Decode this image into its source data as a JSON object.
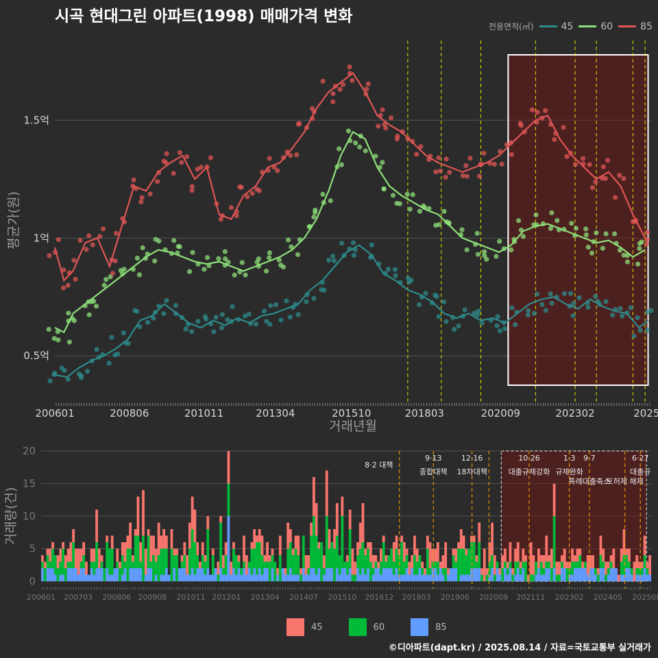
{
  "title": "시곡 현대그린 아파트(1998) 매매가격 변화",
  "legend_title": "전용면적(㎡)",
  "caption": "©디아파트(dapt.kr) / 2025.08.14 / 자료=국토교통부 실거래가",
  "colors": {
    "s45": "#2e8b8b",
    "s60": "#8ee07a",
    "s85": "#e05555",
    "b45": "#f8766d",
    "b60": "#00ba38",
    "b85": "#619cff"
  },
  "chart_data": [
    {
      "type": "line",
      "title": "시곡 현대그린 아파트(1998) 매매가격 변화",
      "xlabel": "거래년월",
      "ylabel": "평균가(원)",
      "x_ticks": [
        "200601",
        "200806",
        "201011",
        "201304",
        "201510",
        "201803",
        "202009",
        "202302",
        "2025"
      ],
      "y_ticks": [
        "0.5억",
        "1억",
        "1.5억"
      ],
      "y_tick_values": [
        0.5,
        1.0,
        1.5
      ],
      "ylim": [
        0.3,
        1.85
      ],
      "xlim": [
        2006.0,
        2025.6
      ],
      "highlight_range": [
        2020.9,
        2025.5
      ],
      "event_lines": [
        2017.6,
        2018.7,
        2020.0,
        2021.8,
        2023.1,
        2023.8,
        2025.0,
        2025.4
      ],
      "series": [
        {
          "name": "45",
          "points": [
            [
              2006.0,
              0.42
            ],
            [
              2006.4,
              0.41
            ],
            [
              2006.8,
              0.45
            ],
            [
              2007.2,
              0.48
            ],
            [
              2007.6,
              0.5
            ],
            [
              2008.0,
              0.53
            ],
            [
              2008.4,
              0.57
            ],
            [
              2008.8,
              0.65
            ],
            [
              2009.2,
              0.67
            ],
            [
              2009.6,
              0.72
            ],
            [
              2010.0,
              0.68
            ],
            [
              2010.4,
              0.64
            ],
            [
              2010.8,
              0.62
            ],
            [
              2011.2,
              0.65
            ],
            [
              2011.6,
              0.63
            ],
            [
              2012.0,
              0.66
            ],
            [
              2012.4,
              0.64
            ],
            [
              2012.8,
              0.67
            ],
            [
              2013.2,
              0.68
            ],
            [
              2013.6,
              0.7
            ],
            [
              2014.0,
              0.72
            ],
            [
              2014.4,
              0.78
            ],
            [
              2014.8,
              0.82
            ],
            [
              2015.2,
              0.88
            ],
            [
              2015.6,
              0.94
            ],
            [
              2016.0,
              0.97
            ],
            [
              2016.4,
              0.93
            ],
            [
              2016.8,
              0.85
            ],
            [
              2017.2,
              0.82
            ],
            [
              2017.6,
              0.78
            ],
            [
              2018.0,
              0.76
            ],
            [
              2018.4,
              0.73
            ],
            [
              2018.8,
              0.68
            ],
            [
              2019.2,
              0.66
            ],
            [
              2019.6,
              0.68
            ],
            [
              2020.0,
              0.65
            ],
            [
              2020.4,
              0.66
            ],
            [
              2020.8,
              0.64
            ],
            [
              2021.2,
              0.68
            ],
            [
              2021.6,
              0.72
            ],
            [
              2022.0,
              0.74
            ],
            [
              2022.4,
              0.75
            ],
            [
              2022.8,
              0.72
            ],
            [
              2023.2,
              0.7
            ],
            [
              2023.6,
              0.74
            ],
            [
              2024.0,
              0.71
            ],
            [
              2024.4,
              0.69
            ],
            [
              2024.8,
              0.68
            ],
            [
              2025.2,
              0.62
            ],
            [
              2025.5,
              0.65
            ]
          ]
        },
        {
          "name": "60",
          "points": [
            [
              2006.0,
              0.62
            ],
            [
              2006.3,
              0.6
            ],
            [
              2006.6,
              0.68
            ],
            [
              2007.0,
              0.72
            ],
            [
              2007.4,
              0.76
            ],
            [
              2007.8,
              0.8
            ],
            [
              2008.2,
              0.84
            ],
            [
              2008.6,
              0.88
            ],
            [
              2009.0,
              0.92
            ],
            [
              2009.4,
              0.95
            ],
            [
              2009.8,
              0.94
            ],
            [
              2010.2,
              0.92
            ],
            [
              2010.6,
              0.9
            ],
            [
              2011.0,
              0.89
            ],
            [
              2011.4,
              0.9
            ],
            [
              2011.8,
              0.88
            ],
            [
              2012.2,
              0.86
            ],
            [
              2012.6,
              0.88
            ],
            [
              2013.0,
              0.9
            ],
            [
              2013.4,
              0.92
            ],
            [
              2013.8,
              0.95
            ],
            [
              2014.2,
              1.0
            ],
            [
              2014.6,
              1.08
            ],
            [
              2015.0,
              1.2
            ],
            [
              2015.4,
              1.35
            ],
            [
              2015.8,
              1.45
            ],
            [
              2016.2,
              1.42
            ],
            [
              2016.6,
              1.3
            ],
            [
              2017.0,
              1.22
            ],
            [
              2017.4,
              1.18
            ],
            [
              2017.8,
              1.15
            ],
            [
              2018.2,
              1.12
            ],
            [
              2018.6,
              1.1
            ],
            [
              2019.0,
              1.05
            ],
            [
              2019.4,
              1.0
            ],
            [
              2019.8,
              0.98
            ],
            [
              2020.2,
              0.96
            ],
            [
              2020.6,
              0.94
            ],
            [
              2021.0,
              0.97
            ],
            [
              2021.4,
              1.03
            ],
            [
              2021.8,
              1.05
            ],
            [
              2022.2,
              1.06
            ],
            [
              2022.6,
              1.04
            ],
            [
              2023.0,
              1.02
            ],
            [
              2023.4,
              1.0
            ],
            [
              2023.8,
              0.98
            ],
            [
              2024.2,
              0.99
            ],
            [
              2024.6,
              0.96
            ],
            [
              2025.0,
              0.92
            ],
            [
              2025.4,
              0.95
            ]
          ]
        },
        {
          "name": "85",
          "points": [
            [
              2006.0,
              0.96
            ],
            [
              2006.3,
              0.82
            ],
            [
              2006.6,
              0.86
            ],
            [
              2007.0,
              0.98
            ],
            [
              2007.4,
              1.0
            ],
            [
              2007.8,
              0.88
            ],
            [
              2008.2,
              1.05
            ],
            [
              2008.6,
              1.22
            ],
            [
              2009.0,
              1.2
            ],
            [
              2009.4,
              1.28
            ],
            [
              2009.8,
              1.32
            ],
            [
              2010.2,
              1.35
            ],
            [
              2010.6,
              1.25
            ],
            [
              2011.0,
              1.3
            ],
            [
              2011.4,
              1.1
            ],
            [
              2011.8,
              1.08
            ],
            [
              2012.2,
              1.18
            ],
            [
              2012.6,
              1.22
            ],
            [
              2013.0,
              1.3
            ],
            [
              2013.4,
              1.32
            ],
            [
              2013.8,
              1.38
            ],
            [
              2014.2,
              1.45
            ],
            [
              2014.6,
              1.55
            ],
            [
              2015.0,
              1.62
            ],
            [
              2015.4,
              1.66
            ],
            [
              2015.8,
              1.7
            ],
            [
              2016.2,
              1.62
            ],
            [
              2016.6,
              1.52
            ],
            [
              2017.0,
              1.48
            ],
            [
              2017.4,
              1.45
            ],
            [
              2017.8,
              1.4
            ],
            [
              2018.2,
              1.35
            ],
            [
              2018.6,
              1.32
            ],
            [
              2019.0,
              1.3
            ],
            [
              2019.4,
              1.28
            ],
            [
              2019.8,
              1.3
            ],
            [
              2020.2,
              1.32
            ],
            [
              2020.6,
              1.35
            ],
            [
              2021.0,
              1.4
            ],
            [
              2021.4,
              1.45
            ],
            [
              2021.8,
              1.5
            ],
            [
              2022.2,
              1.52
            ],
            [
              2022.6,
              1.42
            ],
            [
              2023.0,
              1.35
            ],
            [
              2023.4,
              1.3
            ],
            [
              2023.8,
              1.25
            ],
            [
              2024.2,
              1.28
            ],
            [
              2024.6,
              1.22
            ],
            [
              2025.0,
              1.1
            ],
            [
              2025.4,
              1.0
            ]
          ]
        }
      ]
    },
    {
      "type": "bar",
      "stacked": true,
      "ylabel": "거래량(건)",
      "y_ticks": [
        "0",
        "5",
        "10",
        "15",
        "20"
      ],
      "y_tick_values": [
        0,
        5,
        10,
        15,
        20
      ],
      "ylim": [
        0,
        20
      ],
      "x_ticks": [
        "200601",
        "200703",
        "200806",
        "200908",
        "201011",
        "201201",
        "201304",
        "201407",
        "201510",
        "201612",
        "201803",
        "201906",
        "202009",
        "202111",
        "202302",
        "202405",
        "202508"
      ],
      "series_names": [
        "45",
        "60",
        "85"
      ],
      "highlight_range": [
        2020.9,
        2025.6
      ],
      "events": [
        {
          "x": 2017.6,
          "label1": "8·2 대책",
          "label2": ""
        },
        {
          "x": 2018.7,
          "label1": "9·13",
          "label2": "종합대책"
        },
        {
          "x": 2019.95,
          "label1": "12·16",
          "label2": "18차대책"
        },
        {
          "x": 2020.5,
          "label1": "",
          "label2": ""
        },
        {
          "x": 2021.8,
          "label1": "10·26",
          "label2": "대출규제강화"
        },
        {
          "x": 2023.1,
          "label1": "1·3",
          "label2": "규제완화"
        },
        {
          "x": 2023.75,
          "label1": "9·7",
          "label2": "특례대출축소"
        },
        {
          "x": 2024.9,
          "label1": "",
          "label2": "토허제 해제"
        },
        {
          "x": 2025.4,
          "label1": "6·27",
          "label2": "대출규"
        }
      ]
    }
  ]
}
